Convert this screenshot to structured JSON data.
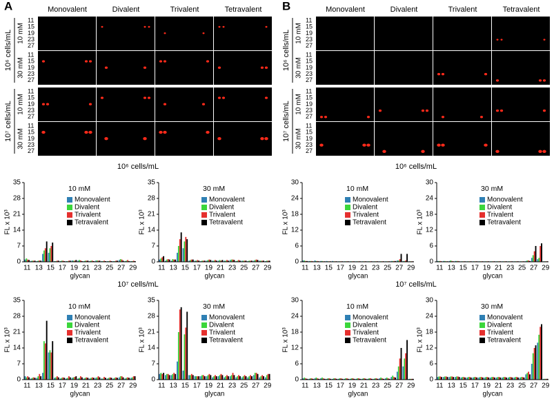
{
  "panels": [
    {
      "label": "A",
      "columns": [
        "Monovalent",
        "Divalent",
        "Trivalent",
        "Tetravalent"
      ],
      "row_groups": [
        {
          "label": "10⁶ cells/mL",
          "rows": [
            "10 mM",
            "30 mM"
          ]
        },
        {
          "label": "10⁷ cells/mL",
          "rows": [
            "10 mM",
            "30 mM"
          ]
        }
      ],
      "row_ticks": [
        "11",
        "15",
        "19",
        "23",
        "27"
      ],
      "chart_headings": [
        "10⁶ cells/mL",
        "10⁷ cells/mL"
      ]
    },
    {
      "label": "B",
      "columns": [
        "Monovalent",
        "Divalent",
        "Trivalent",
        "Tetravalent"
      ],
      "row_groups": [
        {
          "label": "10⁶ cells/mL",
          "rows": [
            "10 mM",
            "30 mM"
          ]
        },
        {
          "label": "10⁷ cells/mL",
          "rows": [
            "10 mM",
            "30 mM"
          ]
        }
      ],
      "row_ticks": [
        "11",
        "15",
        "19",
        "23",
        "27"
      ],
      "chart_headings": [
        "10⁶ cells/mL",
        "10⁷ cells/mL"
      ]
    }
  ],
  "chart_data": [
    {
      "type": "bar",
      "title": "10 mM",
      "ylabel": "FL x 10³",
      "xlabel": "glycan",
      "categories": [
        "11",
        null,
        "13",
        null,
        "15",
        null,
        "17",
        null,
        "19",
        null,
        "21",
        null,
        "23",
        null,
        "25",
        null,
        "27",
        null,
        "29"
      ],
      "ylim": [
        0,
        35
      ],
      "yticks": [
        0,
        7,
        14,
        21,
        28,
        35
      ],
      "series": [
        {
          "name": "Monovalent",
          "color": "#2f80b4",
          "values": [
            1,
            0.4,
            0.3,
            3.5,
            4,
            0.3,
            0.3,
            0.3,
            0.6,
            0.5,
            0.3,
            0.3,
            0.5,
            0.3,
            0.3,
            0.3,
            0.8,
            0.3,
            0.3
          ]
        },
        {
          "name": "Divalent",
          "color": "#3bd63b",
          "values": [
            1.5,
            0.5,
            0.5,
            5,
            6,
            0.3,
            0.5,
            0.3,
            0.5,
            0.8,
            0.5,
            0.5,
            0.6,
            0.3,
            0.3,
            0.3,
            1.2,
            0.5,
            0.3
          ]
        },
        {
          "name": "Trivalent",
          "color": "#e5302e",
          "values": [
            1,
            0.5,
            0.6,
            6,
            7,
            0.5,
            0.5,
            0.5,
            0.5,
            0.6,
            0.5,
            0.5,
            0.5,
            0.5,
            0.5,
            0.5,
            1,
            0.8,
            0.5
          ]
        },
        {
          "name": "Tetravalent",
          "color": "#000000",
          "values": [
            0.8,
            0.5,
            0.5,
            9,
            8.5,
            0.5,
            0.3,
            0.5,
            0.8,
            0.3,
            0.5,
            0.3,
            0.5,
            0.3,
            0.3,
            0.5,
            0.5,
            0.3,
            0.3
          ]
        }
      ]
    },
    {
      "type": "bar",
      "title": "30 mM",
      "ylabel": "FL x 10³",
      "xlabel": "glycan",
      "categories": [
        "11",
        null,
        "13",
        null,
        "15",
        null,
        "17",
        null,
        "19",
        null,
        "21",
        null,
        "23",
        null,
        "25",
        null,
        "27",
        null,
        "29"
      ],
      "ylim": [
        0,
        35
      ],
      "yticks": [
        0,
        7,
        14,
        21,
        28,
        35
      ],
      "series": [
        {
          "name": "Monovalent",
          "color": "#2f80b4",
          "values": [
            1,
            0.5,
            0.5,
            4,
            6,
            0.5,
            0.5,
            0.3,
            0.5,
            0.5,
            0.5,
            0.5,
            0.8,
            0.3,
            0.5,
            0.3,
            0.5,
            0.5,
            0.3
          ]
        },
        {
          "name": "Divalent",
          "color": "#3bd63b",
          "values": [
            1.5,
            1,
            1.2,
            7,
            9,
            0.8,
            0.5,
            0.5,
            0.8,
            0.5,
            0.8,
            0.5,
            1,
            0.5,
            0.5,
            0.5,
            0.8,
            0.5,
            0.5
          ]
        },
        {
          "name": "Trivalent",
          "color": "#e5302e",
          "values": [
            2,
            1.2,
            1,
            10,
            11,
            1,
            0.8,
            0.5,
            1,
            0.8,
            0.5,
            0.8,
            1,
            0.8,
            0.5,
            0.5,
            1,
            0.5,
            0.5
          ]
        },
        {
          "name": "Tetravalent",
          "color": "#000000",
          "values": [
            2.5,
            1,
            1,
            13,
            10,
            1,
            0.5,
            0.5,
            0.8,
            0.5,
            0.8,
            0.5,
            0.8,
            0.5,
            0.5,
            0.5,
            0.8,
            0.5,
            0.5
          ]
        }
      ]
    },
    {
      "type": "bar",
      "title": "10 mM",
      "ylabel": "FL x 10³",
      "xlabel": "glycan",
      "categories": [
        "11",
        null,
        "13",
        null,
        "15",
        null,
        "17",
        null,
        "19",
        null,
        "21",
        null,
        "23",
        null,
        "25",
        null,
        "27",
        null,
        "29"
      ],
      "ylim": [
        0,
        35
      ],
      "yticks": [
        0,
        7,
        14,
        21,
        28,
        35
      ],
      "series": [
        {
          "name": "Monovalent",
          "color": "#2f80b4",
          "values": [
            1.5,
            0.5,
            0.8,
            3,
            12,
            0.8,
            0.5,
            0.5,
            0.8,
            0.5,
            0.5,
            0.5,
            0.8,
            0.5,
            0.5,
            0.5,
            1,
            0.5,
            0.8
          ]
        },
        {
          "name": "Divalent",
          "color": "#3bd63b",
          "values": [
            1,
            0.8,
            1.5,
            17,
            13,
            1,
            0.8,
            0.8,
            1,
            0.8,
            0.8,
            0.8,
            1,
            0.5,
            0.8,
            0.8,
            1.5,
            0.8,
            1
          ]
        },
        {
          "name": "Trivalent",
          "color": "#e5302e",
          "values": [
            1.5,
            1,
            2.5,
            16,
            12,
            1.5,
            1,
            1.5,
            1.2,
            1.5,
            1,
            1,
            1.5,
            1.2,
            1,
            1,
            1.5,
            1,
            1.5
          ]
        },
        {
          "name": "Tetravalent",
          "color": "#000000",
          "values": [
            1,
            0.8,
            1.5,
            26,
            17,
            1,
            0.8,
            1,
            1.5,
            1,
            0.8,
            0.8,
            1,
            0.8,
            0.8,
            0.8,
            1,
            0.8,
            1.5
          ]
        }
      ]
    },
    {
      "type": "bar",
      "title": "30 mM",
      "ylabel": "FL x 10³",
      "xlabel": "glycan",
      "categories": [
        "11",
        null,
        "13",
        null,
        "15",
        null,
        "17",
        null,
        "19",
        null,
        "21",
        null,
        "23",
        null,
        "25",
        null,
        "27",
        null,
        "29"
      ],
      "ylim": [
        0,
        35
      ],
      "yticks": [
        0,
        7,
        14,
        21,
        28,
        35
      ],
      "series": [
        {
          "name": "Monovalent",
          "color": "#2f80b4",
          "values": [
            2.5,
            2,
            2,
            8,
            4,
            2,
            1.5,
            1.5,
            1.5,
            1,
            1.5,
            1,
            1.5,
            1,
            1,
            1,
            2,
            1,
            1
          ]
        },
        {
          "name": "Divalent",
          "color": "#3bd63b",
          "values": [
            3,
            2.5,
            2.5,
            21,
            20,
            2,
            1.5,
            2,
            2,
            1.5,
            2,
            1.5,
            2,
            1.5,
            1.5,
            1.5,
            3,
            1.5,
            2
          ]
        },
        {
          "name": "Trivalent",
          "color": "#e5302e",
          "values": [
            2.5,
            2.5,
            3,
            31,
            23,
            2.5,
            1.5,
            2,
            2.5,
            2,
            2.5,
            2,
            3,
            2,
            2,
            2,
            3,
            2,
            2.5
          ]
        },
        {
          "name": "Tetravalent",
          "color": "#000000",
          "values": [
            3,
            2,
            2.5,
            32,
            30,
            2,
            1.5,
            1.5,
            2,
            1.5,
            2,
            1.5,
            2,
            1.5,
            1.5,
            1.5,
            2.5,
            1.5,
            2.5
          ]
        }
      ]
    },
    {
      "type": "bar",
      "title": "10 mM",
      "ylabel": "FL x 10³",
      "xlabel": "glycan",
      "categories": [
        "11",
        null,
        "13",
        null,
        "15",
        null,
        "17",
        null,
        "19",
        null,
        "21",
        null,
        "23",
        null,
        "25",
        null,
        "27",
        null,
        "29"
      ],
      "ylim": [
        0,
        30
      ],
      "yticks": [
        0,
        6,
        12,
        18,
        24,
        30
      ],
      "series": [
        {
          "name": "Monovalent",
          "color": "#2f80b4",
          "values": [
            0.5,
            0.3,
            0.5,
            0.3,
            0.3,
            0.3,
            0.2,
            0.2,
            0.2,
            0.2,
            0.2,
            0.2,
            0.2,
            0.2,
            0.2,
            0.3,
            0.5,
            0.3,
            0.2
          ]
        },
        {
          "name": "Divalent",
          "color": "#3bd63b",
          "values": [
            0.5,
            0.3,
            0.3,
            0.3,
            0.2,
            0.2,
            0.2,
            0.2,
            0.2,
            0.2,
            0.2,
            0.2,
            0.2,
            0.2,
            0.2,
            0.3,
            0.5,
            0.3,
            0.2
          ]
        },
        {
          "name": "Trivalent",
          "color": "#e5302e",
          "values": [
            0.3,
            0.3,
            0.3,
            0.2,
            0.2,
            0.2,
            0.2,
            0.2,
            0.2,
            0.2,
            0.2,
            0.2,
            0.2,
            0.2,
            0.2,
            0.3,
            1,
            0.5,
            0.2
          ]
        },
        {
          "name": "Tetravalent",
          "color": "#000000",
          "values": [
            0.3,
            0.2,
            0.2,
            0.2,
            0.2,
            0.2,
            0.2,
            0.2,
            0.2,
            0.2,
            0.2,
            0.2,
            0.2,
            0.2,
            0.2,
            0.3,
            3,
            3,
            0.2
          ]
        }
      ]
    },
    {
      "type": "bar",
      "title": "30 mM",
      "ylabel": "FL x 10³",
      "xlabel": "glycan",
      "categories": [
        "11",
        null,
        "13",
        null,
        "15",
        null,
        "17",
        null,
        "19",
        null,
        "21",
        null,
        "23",
        null,
        "25",
        null,
        "27",
        null,
        "29"
      ],
      "ylim": [
        0,
        30
      ],
      "yticks": [
        0,
        6,
        12,
        18,
        24,
        30
      ],
      "series": [
        {
          "name": "Monovalent",
          "color": "#2f80b4",
          "values": [
            0.3,
            0.3,
            0.3,
            0.3,
            0.2,
            0.2,
            0.2,
            0.2,
            0.2,
            0.2,
            0.2,
            0.2,
            0.2,
            0.2,
            0.2,
            0.3,
            1.5,
            1,
            0.2
          ]
        },
        {
          "name": "Divalent",
          "color": "#3bd63b",
          "values": [
            0.3,
            0.3,
            0.5,
            0.3,
            0.2,
            0.2,
            0.2,
            0.2,
            0.2,
            0.2,
            0.2,
            0.2,
            0.2,
            0.2,
            0.2,
            0.5,
            2.5,
            1.5,
            0.2
          ]
        },
        {
          "name": "Trivalent",
          "color": "#e5302e",
          "values": [
            0.3,
            0.2,
            0.3,
            0.3,
            0.2,
            0.2,
            0.2,
            0.2,
            0.2,
            0.2,
            0.2,
            0.2,
            0.2,
            0.2,
            0.2,
            0.5,
            4,
            6,
            0.2
          ]
        },
        {
          "name": "Tetravalent",
          "color": "#000000",
          "values": [
            0.2,
            0.2,
            0.2,
            0.2,
            0.2,
            0.2,
            0.2,
            0.2,
            0.2,
            0.2,
            0.2,
            0.2,
            0.2,
            0.2,
            0.2,
            0.3,
            6,
            7,
            0.2
          ]
        }
      ]
    },
    {
      "type": "bar",
      "title": "10 mM",
      "ylabel": "FL x 10³",
      "xlabel": "glycan",
      "categories": [
        "11",
        null,
        "13",
        null,
        "15",
        null,
        "17",
        null,
        "19",
        null,
        "21",
        null,
        "23",
        null,
        "25",
        null,
        "27",
        null,
        "29"
      ],
      "ylim": [
        0,
        30
      ],
      "yticks": [
        0,
        6,
        12,
        18,
        24,
        30
      ],
      "series": [
        {
          "name": "Monovalent",
          "color": "#2f80b4",
          "values": [
            0.5,
            0.3,
            0.5,
            0.5,
            0.3,
            0.3,
            0.3,
            0.3,
            0.3,
            0.3,
            0.3,
            0.3,
            0.3,
            0.5,
            0.5,
            1,
            3,
            5,
            0.3
          ]
        },
        {
          "name": "Divalent",
          "color": "#3bd63b",
          "values": [
            0.8,
            0.5,
            0.8,
            0.8,
            0.5,
            0.5,
            0.5,
            0.5,
            0.5,
            0.5,
            0.5,
            0.5,
            0.5,
            0.8,
            0.8,
            1.5,
            5,
            8,
            0.3
          ]
        },
        {
          "name": "Trivalent",
          "color": "#e5302e",
          "values": [
            0.5,
            0.5,
            0.5,
            0.5,
            0.5,
            0.5,
            0.5,
            0.5,
            0.5,
            0.5,
            0.5,
            0.5,
            0.5,
            0.5,
            0.5,
            1,
            8,
            10,
            0.3
          ]
        },
        {
          "name": "Tetravalent",
          "color": "#000000",
          "values": [
            0.3,
            0.3,
            0.3,
            0.3,
            0.3,
            0.3,
            0.3,
            0.3,
            0.3,
            0.3,
            0.3,
            0.3,
            0.3,
            0.3,
            0.3,
            0.8,
            12,
            15,
            0.3
          ]
        }
      ]
    },
    {
      "type": "bar",
      "title": "30 mM",
      "ylabel": "FL x 10³",
      "xlabel": "glycan",
      "categories": [
        "11",
        null,
        "13",
        null,
        "15",
        null,
        "17",
        null,
        "19",
        null,
        "21",
        null,
        "23",
        null,
        "25",
        null,
        "27",
        null,
        "29"
      ],
      "ylim": [
        0,
        30
      ],
      "yticks": [
        0,
        6,
        12,
        18,
        24,
        30
      ],
      "series": [
        {
          "name": "Monovalent",
          "color": "#2f80b4",
          "values": [
            1,
            1,
            1,
            1,
            0.8,
            0.8,
            0.8,
            0.8,
            0.8,
            0.8,
            0.8,
            0.8,
            0.8,
            0.8,
            0.8,
            2,
            6,
            14,
            0.3
          ]
        },
        {
          "name": "Divalent",
          "color": "#3bd63b",
          "values": [
            1.2,
            1.2,
            1.2,
            1.2,
            1,
            1,
            1,
            1,
            1,
            1,
            1,
            1,
            1,
            1,
            1,
            2.5,
            10,
            17,
            0.3
          ]
        },
        {
          "name": "Trivalent",
          "color": "#e5302e",
          "values": [
            1.2,
            1.2,
            1.2,
            1.2,
            1,
            1,
            1,
            1,
            1,
            1,
            1,
            1,
            1,
            1,
            1,
            3,
            12,
            20,
            0.3
          ]
        },
        {
          "name": "Tetravalent",
          "color": "#000000",
          "values": [
            1,
            1,
            1,
            1,
            0.8,
            0.8,
            0.8,
            0.8,
            0.8,
            0.8,
            0.8,
            0.8,
            0.8,
            0.8,
            0.8,
            2,
            13,
            21,
            0.3
          ]
        }
      ]
    }
  ]
}
